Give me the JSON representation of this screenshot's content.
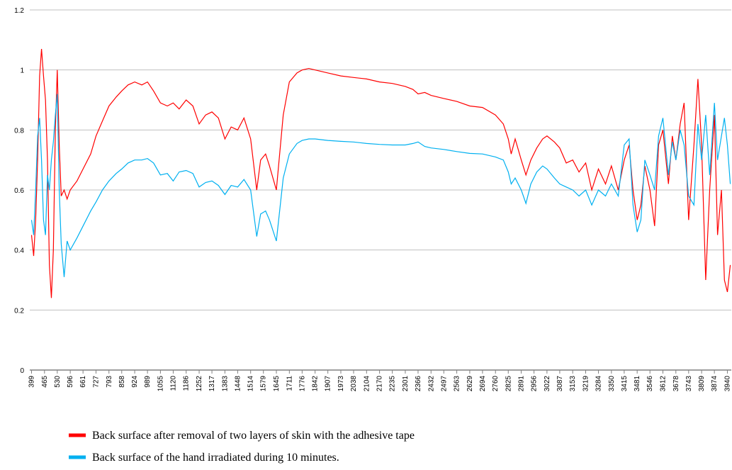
{
  "chart_data": {
    "type": "line",
    "x": [
      399,
      410,
      420,
      430,
      440,
      450,
      460,
      470,
      480,
      490,
      500,
      510,
      520,
      530,
      540,
      550,
      565,
      580,
      596,
      630,
      661,
      700,
      727,
      760,
      793,
      830,
      858,
      890,
      924,
      960,
      989,
      1020,
      1055,
      1090,
      1120,
      1150,
      1186,
      1220,
      1252,
      1285,
      1317,
      1350,
      1383,
      1415,
      1448,
      1480,
      1514,
      1545,
      1565,
      1590,
      1610,
      1645,
      1680,
      1711,
      1750,
      1776,
      1810,
      1842,
      1907,
      1973,
      2038,
      2104,
      2170,
      2235,
      2301,
      2340,
      2366,
      2400,
      2432,
      2497,
      2563,
      2629,
      2694,
      2760,
      2800,
      2825,
      2840,
      2860,
      2891,
      2915,
      2940,
      2970,
      3000,
      3022,
      3060,
      3087,
      3120,
      3153,
      3185,
      3219,
      3250,
      3284,
      3320,
      3350,
      3385,
      3415,
      3440,
      3460,
      3481,
      3500,
      3520,
      3546,
      3570,
      3590,
      3612,
      3640,
      3660,
      3678,
      3700,
      3720,
      3743,
      3770,
      3790,
      3809,
      3830,
      3850,
      3874,
      3890,
      3910,
      3925,
      3940,
      3955
    ],
    "series": [
      {
        "name": "Back surface after removal of two layers of skin with the adhesive tape",
        "color": "#ff0000",
        "values": [
          0.45,
          0.38,
          0.5,
          0.7,
          0.98,
          1.07,
          0.98,
          0.9,
          0.7,
          0.35,
          0.24,
          0.4,
          0.8,
          1.0,
          0.75,
          0.58,
          0.6,
          0.57,
          0.6,
          0.63,
          0.67,
          0.72,
          0.78,
          0.83,
          0.88,
          0.91,
          0.93,
          0.95,
          0.96,
          0.95,
          0.96,
          0.93,
          0.89,
          0.88,
          0.89,
          0.87,
          0.9,
          0.88,
          0.82,
          0.85,
          0.86,
          0.84,
          0.77,
          0.81,
          0.8,
          0.84,
          0.77,
          0.6,
          0.7,
          0.72,
          0.68,
          0.6,
          0.85,
          0.96,
          0.99,
          1.0,
          1.005,
          1.0,
          0.99,
          0.98,
          0.975,
          0.97,
          0.96,
          0.955,
          0.945,
          0.935,
          0.92,
          0.925,
          0.915,
          0.905,
          0.895,
          0.88,
          0.875,
          0.85,
          0.82,
          0.77,
          0.72,
          0.77,
          0.7,
          0.65,
          0.7,
          0.74,
          0.77,
          0.78,
          0.76,
          0.74,
          0.69,
          0.7,
          0.66,
          0.69,
          0.6,
          0.67,
          0.62,
          0.68,
          0.6,
          0.7,
          0.75,
          0.6,
          0.5,
          0.55,
          0.68,
          0.6,
          0.48,
          0.75,
          0.8,
          0.62,
          0.78,
          0.7,
          0.82,
          0.89,
          0.5,
          0.75,
          0.97,
          0.75,
          0.3,
          0.6,
          0.85,
          0.45,
          0.6,
          0.3,
          0.26,
          0.35
        ]
      },
      {
        "name": "Back surface of the hand irradiated during 10 minutes.",
        "color": "#00b0f0",
        "values": [
          0.5,
          0.45,
          0.6,
          0.78,
          0.84,
          0.7,
          0.5,
          0.45,
          0.65,
          0.6,
          0.7,
          0.76,
          0.85,
          0.92,
          0.6,
          0.42,
          0.31,
          0.43,
          0.4,
          0.44,
          0.48,
          0.53,
          0.56,
          0.6,
          0.63,
          0.655,
          0.67,
          0.69,
          0.7,
          0.7,
          0.705,
          0.69,
          0.65,
          0.655,
          0.63,
          0.66,
          0.665,
          0.655,
          0.61,
          0.625,
          0.63,
          0.615,
          0.585,
          0.615,
          0.61,
          0.635,
          0.6,
          0.445,
          0.52,
          0.53,
          0.5,
          0.43,
          0.64,
          0.72,
          0.755,
          0.765,
          0.77,
          0.77,
          0.765,
          0.762,
          0.76,
          0.755,
          0.752,
          0.75,
          0.75,
          0.755,
          0.76,
          0.745,
          0.74,
          0.735,
          0.728,
          0.722,
          0.72,
          0.71,
          0.7,
          0.66,
          0.62,
          0.64,
          0.6,
          0.555,
          0.62,
          0.66,
          0.68,
          0.67,
          0.64,
          0.62,
          0.61,
          0.6,
          0.58,
          0.6,
          0.55,
          0.6,
          0.58,
          0.62,
          0.58,
          0.75,
          0.77,
          0.55,
          0.46,
          0.5,
          0.7,
          0.65,
          0.6,
          0.78,
          0.84,
          0.65,
          0.76,
          0.7,
          0.8,
          0.75,
          0.58,
          0.55,
          0.82,
          0.7,
          0.85,
          0.65,
          0.89,
          0.7,
          0.78,
          0.84,
          0.75,
          0.62
        ]
      }
    ],
    "xlim": [
      390,
      3960
    ],
    "xticks": [
      399,
      465,
      530,
      596,
      661,
      727,
      793,
      858,
      924,
      989,
      1055,
      1120,
      1186,
      1252,
      1317,
      1383,
      1448,
      1514,
      1579,
      1645,
      1711,
      1776,
      1842,
      1907,
      1973,
      2038,
      2104,
      2170,
      2235,
      2301,
      2366,
      2432,
      2497,
      2563,
      2629,
      2694,
      2760,
      2825,
      2891,
      2956,
      3022,
      3087,
      3153,
      3219,
      3284,
      3350,
      3415,
      3481,
      3546,
      3612,
      3678,
      3743,
      3809,
      3874,
      3940
    ],
    "ylim": [
      0,
      1.2
    ],
    "yticks": [
      0,
      0.2,
      0.4,
      0.6,
      0.8,
      1,
      1.2
    ],
    "grid": true,
    "legend": "bottom"
  }
}
